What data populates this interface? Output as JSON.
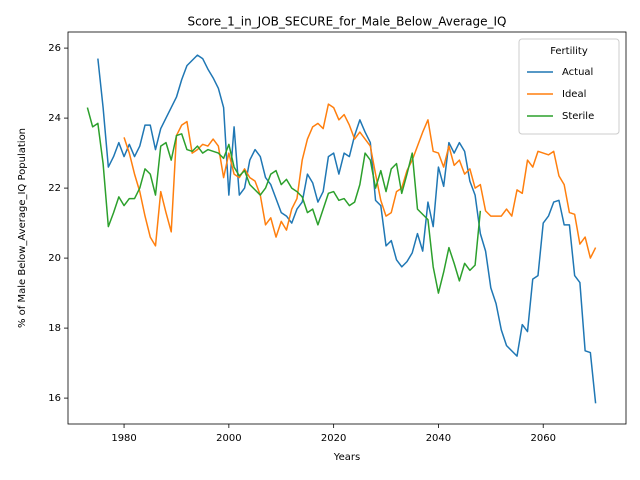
{
  "chart_data": {
    "type": "line",
    "title": "Score_1_in_JOB_SECURE_for_Male_Below_Average_IQ",
    "x_label": "Years",
    "y_label": "% of Male Below_Average_IQ Population",
    "legend_title": "Fertility",
    "legend_loc": "upper right",
    "grid": false,
    "xlim": [
      1969.3,
      2075.8
    ],
    "ylim": [
      15.26,
      26.46
    ],
    "xticks": [
      1980,
      2000,
      2020,
      2040,
      2060
    ],
    "yticks": [
      16,
      18,
      20,
      22,
      24,
      26
    ],
    "x": [
      1973,
      1974,
      1975,
      1976,
      1977,
      1978,
      1979,
      1980,
      1981,
      1982,
      1983,
      1984,
      1985,
      1986,
      1987,
      1988,
      1989,
      1990,
      1991,
      1992,
      1993,
      1994,
      1995,
      1996,
      1997,
      1998,
      1999,
      2000,
      2001,
      2002,
      2003,
      2004,
      2005,
      2006,
      2007,
      2008,
      2009,
      2010,
      2011,
      2012,
      2013,
      2014,
      2015,
      2016,
      2017,
      2018,
      2019,
      2020,
      2021,
      2022,
      2023,
      2024,
      2025,
      2026,
      2027,
      2028,
      2029,
      2030,
      2031,
      2032,
      2033,
      2034,
      2035,
      2036,
      2037,
      2038,
      2039,
      2040,
      2041,
      2042,
      2043,
      2044,
      2045,
      2046,
      2047,
      2048,
      2049,
      2050,
      2051,
      2052,
      2053,
      2054,
      2055,
      2056,
      2057,
      2058,
      2059,
      2060,
      2061,
      2062,
      2063,
      2064,
      2065,
      2066,
      2067,
      2068,
      2069,
      2070
    ],
    "series": [
      {
        "name": "Actual",
        "color": "#1f77b4",
        "values": [
          null,
          null,
          25.7,
          24.3,
          22.6,
          22.9,
          23.3,
          22.9,
          23.25,
          22.9,
          23.2,
          23.8,
          23.8,
          23.1,
          23.7,
          24.0,
          24.3,
          24.6,
          25.1,
          25.5,
          25.65,
          25.8,
          25.7,
          25.4,
          25.15,
          24.85,
          24.3,
          21.8,
          23.75,
          21.8,
          22.0,
          22.8,
          23.1,
          22.9,
          22.3,
          22.1,
          21.7,
          21.3,
          21.2,
          21.0,
          21.4,
          21.6,
          22.4,
          22.15,
          21.6,
          21.9,
          22.9,
          23.0,
          22.4,
          23.0,
          22.9,
          23.5,
          23.95,
          23.6,
          23.3,
          21.65,
          21.5,
          20.35,
          20.5,
          19.95,
          19.75,
          19.9,
          20.15,
          20.7,
          20.2,
          21.6,
          20.9,
          22.6,
          22.05,
          23.3,
          23.0,
          23.3,
          23.05,
          22.2,
          21.8,
          20.7,
          20.2,
          19.15,
          18.7,
          17.95,
          17.5,
          17.35,
          17.2,
          18.1,
          17.9,
          19.4,
          19.5,
          21.0,
          21.2,
          21.6,
          21.65,
          20.95,
          20.95,
          19.5,
          19.3,
          17.35,
          17.3,
          15.85
        ]
      },
      {
        "name": "Ideal",
        "color": "#ff7f0e",
        "values": [
          null,
          null,
          null,
          null,
          null,
          null,
          null,
          23.45,
          23.0,
          22.4,
          21.9,
          21.2,
          20.6,
          20.35,
          21.9,
          21.3,
          20.75,
          23.5,
          23.8,
          23.9,
          23.0,
          23.1,
          23.25,
          23.2,
          23.4,
          23.2,
          22.3,
          23.0,
          22.4,
          22.3,
          22.55,
          22.3,
          22.2,
          21.8,
          20.95,
          21.15,
          20.6,
          21.05,
          20.8,
          21.4,
          21.7,
          22.8,
          23.4,
          23.75,
          23.85,
          23.7,
          24.4,
          24.3,
          23.95,
          24.1,
          23.8,
          23.4,
          23.6,
          23.4,
          23.2,
          22.4,
          21.65,
          21.2,
          21.3,
          21.9,
          22.0,
          22.5,
          22.8,
          23.2,
          23.6,
          23.95,
          23.05,
          23.0,
          22.6,
          23.2,
          22.65,
          22.8,
          22.4,
          22.55,
          22.0,
          22.1,
          21.35,
          21.2,
          21.2,
          21.2,
          21.4,
          21.2,
          21.95,
          21.85,
          22.8,
          22.6,
          23.05,
          23.0,
          22.95,
          23.05,
          22.35,
          22.1,
          21.3,
          21.25,
          20.4,
          20.6,
          20.0,
          20.3
        ]
      },
      {
        "name": "Sterile",
        "color": "#2ca02c",
        "values": [
          24.3,
          23.75,
          23.85,
          22.7,
          20.9,
          21.3,
          21.75,
          21.5,
          21.7,
          21.7,
          22.0,
          22.55,
          22.4,
          21.8,
          23.2,
          23.3,
          22.8,
          23.5,
          23.55,
          23.1,
          23.05,
          23.2,
          23.0,
          23.1,
          23.05,
          23.0,
          22.85,
          23.25,
          22.6,
          22.35,
          22.5,
          22.1,
          21.95,
          21.8,
          22.0,
          22.4,
          22.5,
          22.1,
          22.25,
          22.0,
          21.9,
          21.75,
          21.3,
          21.4,
          20.95,
          21.4,
          21.85,
          21.9,
          21.65,
          21.7,
          21.5,
          21.6,
          22.1,
          23.0,
          22.8,
          22.0,
          22.5,
          21.9,
          22.55,
          22.7,
          21.85,
          22.4,
          23.0,
          21.4,
          21.25,
          21.1,
          19.75,
          19.0,
          19.6,
          20.3,
          19.85,
          19.35,
          19.85,
          19.65,
          19.8,
          21.35,
          null,
          null,
          null,
          null,
          null,
          null,
          null,
          null,
          null,
          null,
          null,
          null,
          null,
          null,
          null,
          null,
          null,
          null,
          null,
          null,
          null,
          null
        ]
      }
    ]
  }
}
